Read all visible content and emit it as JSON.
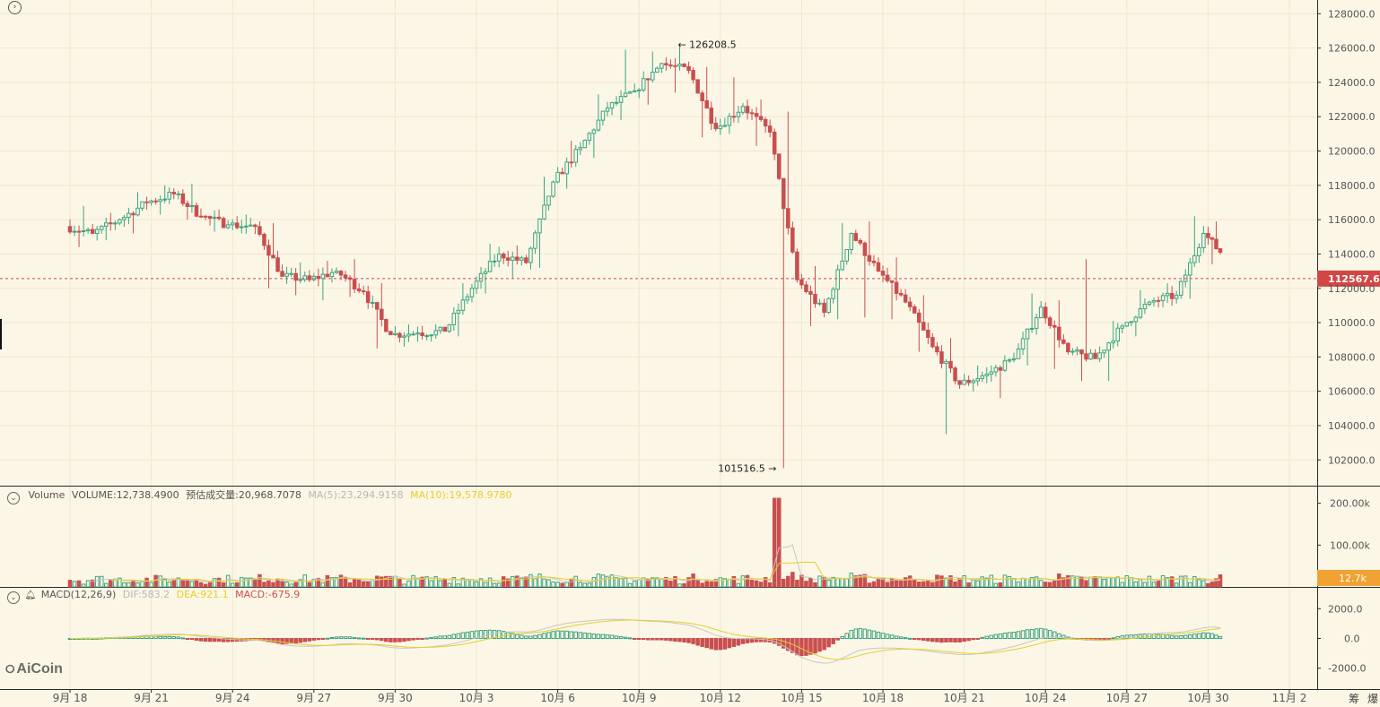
{
  "colors": {
    "background": "#fcf6e6",
    "up": "#3aa57f",
    "down": "#c94f4f",
    "grid": "#efe6cf",
    "axis_line": "#2a2a2a",
    "ma5": "#c7c7c7",
    "ma10": "#e6cf2c",
    "price_tag": "#d24646",
    "volume_tag": "#f0a233",
    "text": "#555555"
  },
  "header": {
    "collapse_icon": "chevron-right-icon"
  },
  "price_panel": {
    "high_marker": "126208.5",
    "low_marker": "101516.5",
    "current_price": "112567.6",
    "y_ticks": [
      "128000.0",
      "126000.0",
      "124000.0",
      "122000.0",
      "120000.0",
      "118000.0",
      "116000.0",
      "114000.0",
      "112000.0",
      "110000.0",
      "108000.0",
      "106000.0",
      "104000.0",
      "102000.0"
    ]
  },
  "volume_panel": {
    "indicator_name": "Volume",
    "volume_text": "VOLUME:12,738.4900",
    "estimated_text": "预估成交量:20,968.7078",
    "ma5_text": "MA(5):23,294.9158",
    "ma10_text": "MA(10):19,578.9780",
    "y_ticks": [
      "200.00k",
      "100.00k"
    ],
    "current_tag": "12.7k"
  },
  "macd_panel": {
    "indicator_name": "MACD(12,26,9)",
    "dif_text": "DIF:583.2",
    "dea_text": "DEA:921.1",
    "macd_text": "MACD:-675.9",
    "y_ticks": [
      "2000.0",
      "0.0",
      "-2000.0"
    ]
  },
  "watermark": "AiCoin",
  "x_axis": {
    "labels": [
      "9月 18",
      "9月 21",
      "9月 24",
      "9月 27",
      "9月 30",
      "10月 3",
      "10月 6",
      "10月 9",
      "10月 12",
      "10月 15",
      "10月 18",
      "10月 21",
      "10月 24",
      "10月 27",
      "10月 30",
      "11月 2"
    ],
    "corner_labels": [
      "筹",
      "爆"
    ]
  },
  "chart_data": {
    "type": "candlestick",
    "timeframe_note": "6 candles per day (4h)",
    "ylim": [
      100500,
      128800
    ],
    "volume_ylim": [
      0,
      240000
    ],
    "macd_ylim": [
      -3400,
      3400
    ],
    "anchors": [
      {
        "day": 0,
        "open": 115600,
        "high": 116800,
        "low": 114400,
        "close": 115200
      },
      {
        "day": 1,
        "open": 115200,
        "high": 116400,
        "low": 114800,
        "close": 116000
      },
      {
        "day": 2,
        "open": 116000,
        "high": 117600,
        "low": 115200,
        "close": 117000
      },
      {
        "day": 3,
        "open": 117000,
        "high": 118000,
        "low": 116300,
        "close": 117500
      },
      {
        "day": 4,
        "open": 117500,
        "high": 118100,
        "low": 116000,
        "close": 116200
      },
      {
        "day": 5,
        "open": 116200,
        "high": 116600,
        "low": 115300,
        "close": 115700
      },
      {
        "day": 6,
        "open": 115700,
        "high": 116300,
        "low": 115200,
        "close": 115600
      },
      {
        "day": 7,
        "open": 115600,
        "high": 115800,
        "low": 112000,
        "close": 112700
      },
      {
        "day": 8,
        "open": 112700,
        "high": 113500,
        "low": 111600,
        "close": 112500
      },
      {
        "day": 9,
        "open": 112500,
        "high": 113600,
        "low": 111300,
        "close": 113000
      },
      {
        "day": 10,
        "open": 113000,
        "high": 113700,
        "low": 111500,
        "close": 111800
      },
      {
        "day": 11,
        "open": 111800,
        "high": 112300,
        "low": 108500,
        "close": 109300
      },
      {
        "day": 12,
        "open": 109300,
        "high": 109900,
        "low": 108600,
        "close": 109400
      },
      {
        "day": 13,
        "open": 109400,
        "high": 109900,
        "low": 108900,
        "close": 109500
      },
      {
        "day": 14,
        "open": 109500,
        "high": 112300,
        "low": 109200,
        "close": 112000
      },
      {
        "day": 15,
        "open": 112000,
        "high": 114600,
        "low": 111700,
        "close": 114000
      },
      {
        "day": 16,
        "open": 114000,
        "high": 114500,
        "low": 112600,
        "close": 113500
      },
      {
        "day": 17,
        "open": 113500,
        "high": 118500,
        "low": 113200,
        "close": 118200
      },
      {
        "day": 18,
        "open": 118200,
        "high": 120600,
        "low": 117800,
        "close": 120200
      },
      {
        "day": 19,
        "open": 120200,
        "high": 123300,
        "low": 119600,
        "close": 122500
      },
      {
        "day": 20,
        "open": 122500,
        "high": 125900,
        "low": 121800,
        "close": 123500
      },
      {
        "day": 21,
        "open": 123500,
        "high": 125800,
        "low": 122700,
        "close": 125100
      },
      {
        "day": 22,
        "open": 125100,
        "high": 126208.5,
        "low": 123400,
        "close": 124700
      },
      {
        "day": 23,
        "open": 124700,
        "high": 124900,
        "low": 120800,
        "close": 121300
      },
      {
        "day": 24,
        "open": 121300,
        "high": 124300,
        "low": 121000,
        "close": 122600
      },
      {
        "day": 25,
        "open": 122600,
        "high": 123000,
        "low": 120300,
        "close": 121100
      },
      {
        "day": 26,
        "open": 121100,
        "high": 122300,
        "low": 101516.5,
        "close": 112500
      },
      {
        "day": 27,
        "open": 112500,
        "high": 113300,
        "low": 109800,
        "close": 110600
      },
      {
        "day": 28,
        "open": 110600,
        "high": 115800,
        "low": 110200,
        "close": 115200
      },
      {
        "day": 29,
        "open": 115200,
        "high": 115900,
        "low": 110300,
        "close": 113000
      },
      {
        "day": 30,
        "open": 113000,
        "high": 113800,
        "low": 110200,
        "close": 111200
      },
      {
        "day": 31,
        "open": 111200,
        "high": 111600,
        "low": 108300,
        "close": 108600
      },
      {
        "day": 32,
        "open": 108600,
        "high": 109100,
        "low": 103500,
        "close": 106400
      },
      {
        "day": 33,
        "open": 106400,
        "high": 107500,
        "low": 106000,
        "close": 107000
      },
      {
        "day": 34,
        "open": 107000,
        "high": 108100,
        "low": 105600,
        "close": 107900
      },
      {
        "day": 35,
        "open": 107900,
        "high": 111700,
        "low": 107500,
        "close": 110900
      },
      {
        "day": 36,
        "open": 110900,
        "high": 111300,
        "low": 107300,
        "close": 108300
      },
      {
        "day": 37,
        "open": 108300,
        "high": 113700,
        "low": 106600,
        "close": 107900
      },
      {
        "day": 38,
        "open": 107900,
        "high": 110100,
        "low": 106600,
        "close": 109800
      },
      {
        "day": 39,
        "open": 109800,
        "high": 111900,
        "low": 109200,
        "close": 111200
      },
      {
        "day": 40,
        "open": 111200,
        "high": 112300,
        "low": 110900,
        "close": 111600
      },
      {
        "day": 41,
        "open": 111600,
        "high": 116200,
        "low": 111400,
        "close": 115200
      },
      {
        "day": 42,
        "open": 115200,
        "high": 115900,
        "low": 113400,
        "close": 114100
      },
      {
        "day": 42.6,
        "open": 114100,
        "high": 115900,
        "low": 112200,
        "close": 112400
      }
    ],
    "volume_spike": {
      "day": 26.1,
      "value": 212000
    },
    "series": [
      {
        "name": "MA(5)",
        "color_key": "ma5"
      },
      {
        "name": "MA(10)",
        "color_key": "ma10"
      }
    ]
  }
}
